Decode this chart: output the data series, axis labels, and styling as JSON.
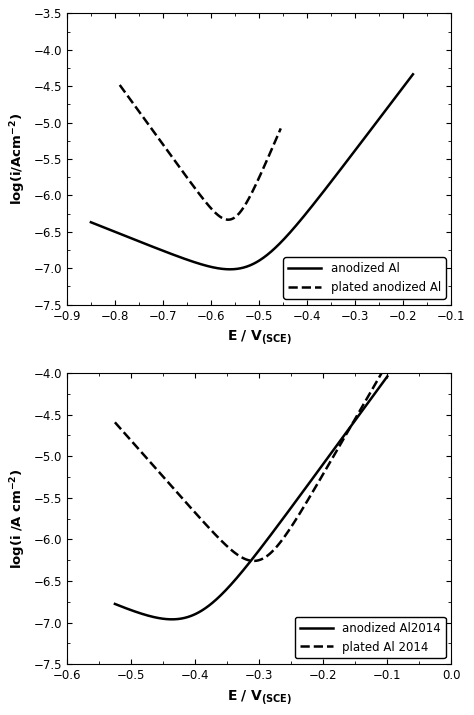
{
  "top_plot": {
    "xlim": [
      -0.9,
      -0.1
    ],
    "ylim": [
      -7.5,
      -3.5
    ],
    "xticks": [
      -0.9,
      -0.8,
      -0.7,
      -0.6,
      -0.5,
      -0.4,
      -0.3,
      -0.2,
      -0.1
    ],
    "yticks": [
      -7.5,
      -7.0,
      -6.5,
      -6.0,
      -5.5,
      -5.0,
      -4.5,
      -4.0,
      -3.5
    ],
    "solid": {
      "E_corr": -0.515,
      "i_corr_log": -7.25,
      "ba": 0.115,
      "bc": 0.38,
      "E_min": -0.85,
      "E_max": -0.18
    },
    "dashed": {
      "E_corr": -0.555,
      "i_corr_log": -6.62,
      "ba": 0.065,
      "bc": 0.11,
      "E_min": -0.79,
      "E_max": -0.455
    },
    "legend": [
      "anodized Al",
      "plated anodized Al"
    ]
  },
  "bottom_plot": {
    "xlim": [
      -0.6,
      0.0
    ],
    "ylim": [
      -7.5,
      -4.0
    ],
    "xticks": [
      -0.6,
      -0.5,
      -0.4,
      -0.3,
      -0.2,
      -0.1,
      0.0
    ],
    "yticks": [
      -7.5,
      -7.0,
      -6.5,
      -6.0,
      -5.5,
      -5.0,
      -4.5,
      -4.0
    ],
    "solid": {
      "E_corr": -0.4,
      "i_corr_log": -7.2,
      "ba": 0.095,
      "bc": 0.3,
      "E_min": -0.525,
      "E_max": -0.1
    },
    "dashed": {
      "E_corr": -0.3,
      "i_corr_log": -6.55,
      "ba": 0.075,
      "bc": 0.115,
      "E_min": -0.525,
      "E_max": -0.1
    },
    "legend": [
      "anodized Al2014",
      "plated Al 2014"
    ]
  },
  "line_color": "#000000",
  "background_color": "#ffffff",
  "linewidth": 1.8
}
